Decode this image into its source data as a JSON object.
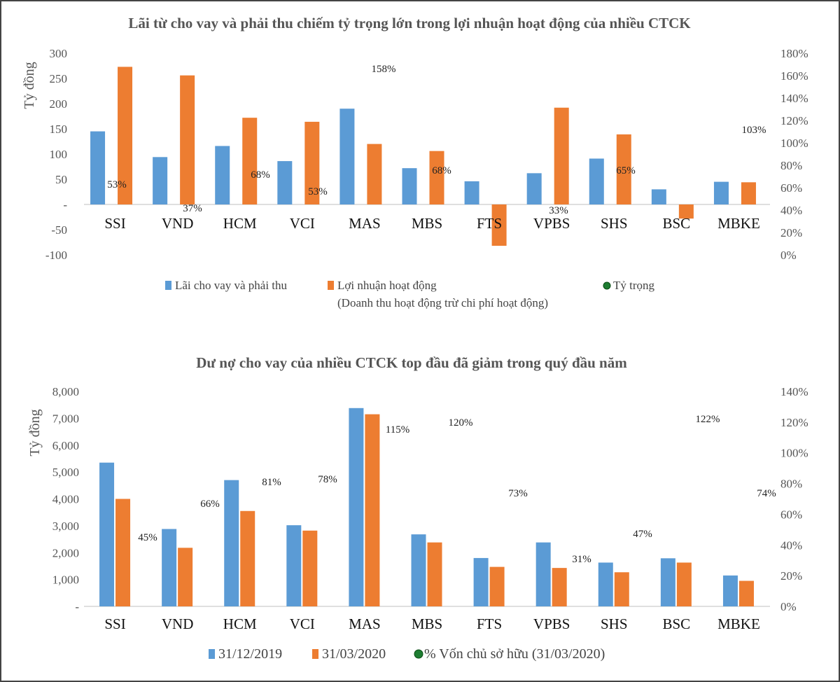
{
  "colors": {
    "series1": "#5b9bd5",
    "series2": "#ed7d31",
    "gridline": "#bfbfbf",
    "dot": "#1e7d32"
  },
  "chart_data": [
    {
      "type": "bar",
      "title": "Lãi từ cho vay và phải thu chiếm tỷ trọng lớn trong lợi nhuận hoạt động của nhiều CTCK",
      "ylabel": "Tỷ đồng",
      "ylim": [
        -100,
        300
      ],
      "ytick_labels": [
        "300",
        "250",
        "200",
        "150",
        "100",
        "50",
        "-",
        "-50",
        "-100"
      ],
      "y2lim": [
        0,
        180
      ],
      "y2tick_labels": [
        "180%",
        "160%",
        "140%",
        "120%",
        "100%",
        "80%",
        "60%",
        "40%",
        "20%",
        "0%"
      ],
      "categories": [
        "SSI",
        "VND",
        "HCM",
        "VCI",
        "MAS",
        "MBS",
        "FTS",
        "VPBS",
        "SHS",
        "BSC",
        "MBKE"
      ],
      "series": [
        {
          "name": "Lãi cho vay và phải thu",
          "values": [
            145,
            94,
            116,
            86,
            190,
            72,
            46,
            62,
            91,
            30,
            45
          ]
        },
        {
          "name": "Lợi nhuận hoạt động",
          "name_line2": "(Doanh thu hoạt động trừ chi phí hoạt động)",
          "values": [
            273,
            256,
            172,
            164,
            120,
            106,
            -82,
            192,
            139,
            -28,
            44
          ]
        },
        {
          "name": "Tỷ trọng",
          "axis": "secondary",
          "values": [
            53,
            37,
            68,
            53,
            158,
            68,
            null,
            33,
            65,
            null,
            103
          ],
          "labels": [
            "53%",
            "37%",
            "68%",
            "53%",
            "158%",
            "68%",
            "",
            "33%",
            "65%",
            "",
            "103%"
          ]
        }
      ],
      "legend_position": "bottom",
      "grid": false
    },
    {
      "type": "bar",
      "title": "Dư nợ cho vay của nhiều CTCK top đầu đã giảm trong quý đầu năm",
      "ylabel": "Tỷ đồng",
      "ylim": [
        0,
        8000
      ],
      "ytick_labels": [
        "8,000",
        "7,000",
        "6,000",
        "5,000",
        "4,000",
        "3,000",
        "2,000",
        "1,000",
        "-"
      ],
      "y2lim": [
        0,
        140
      ],
      "y2tick_labels": [
        "140%",
        "120%",
        "100%",
        "80%",
        "60%",
        "40%",
        "20%",
        "0%"
      ],
      "categories": [
        "SSI",
        "VND",
        "HCM",
        "VCI",
        "MAS",
        "MBS",
        "FTS",
        "VPBS",
        "SHS",
        "BSC",
        "MBKE"
      ],
      "series": [
        {
          "name": "31/12/2019",
          "values": [
            5350,
            2880,
            4700,
            3020,
            7380,
            2680,
            1800,
            2380,
            1630,
            1790,
            1150
          ]
        },
        {
          "name": "31/03/2020",
          "values": [
            4000,
            2180,
            3550,
            2820,
            7150,
            2380,
            1470,
            1430,
            1270,
            1630,
            950
          ]
        },
        {
          "name": "% Vốn chủ sở hữu (31/03/2020)",
          "axis": "secondary",
          "values": [
            45,
            66,
            81,
            78,
            115,
            120,
            73,
            31,
            47,
            122,
            74
          ],
          "labels": [
            "45%",
            "66%",
            "81%",
            "78%",
            "115%",
            "120%",
            "73%",
            "31%",
            "47%",
            "122%",
            "74%"
          ]
        }
      ],
      "legend_position": "bottom",
      "grid": false
    }
  ]
}
